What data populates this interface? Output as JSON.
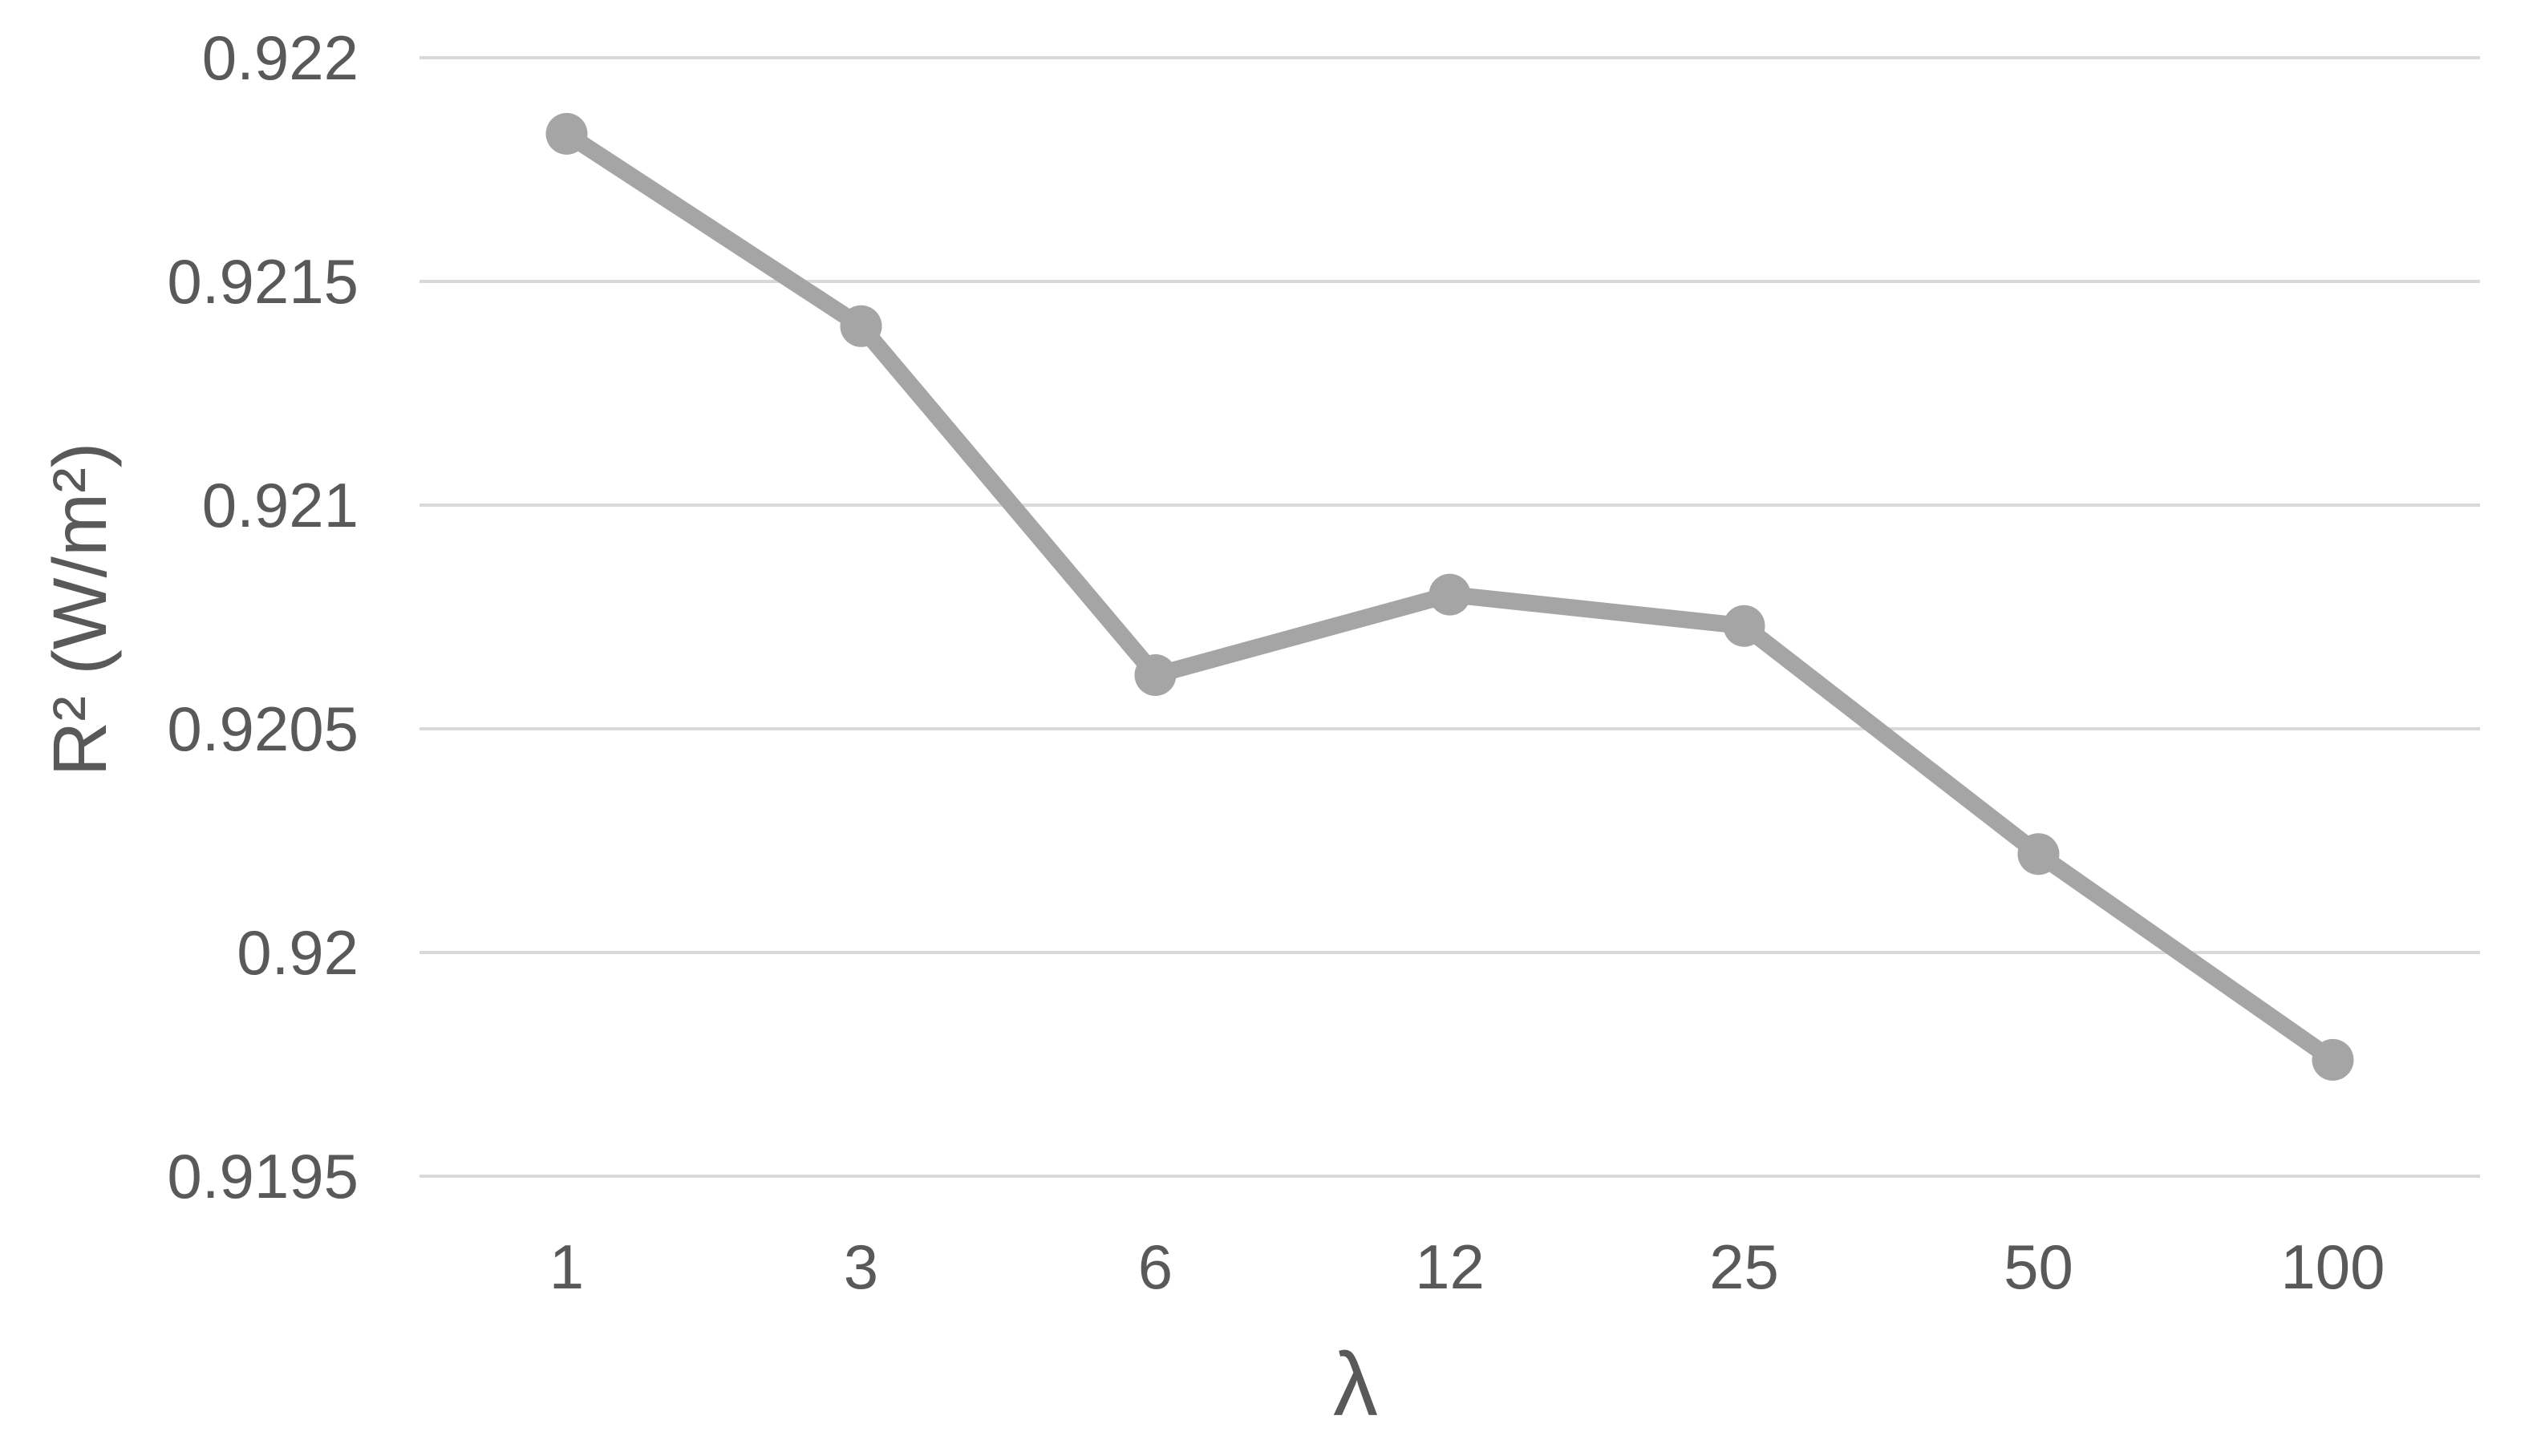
{
  "chart_data": {
    "type": "line",
    "title": "",
    "xlabel": "λ",
    "ylabel": "R² (W/m²)",
    "categories": [
      "1",
      "3",
      "6",
      "12",
      "25",
      "50",
      "100"
    ],
    "values": [
      0.92183,
      0.9214,
      0.92062,
      0.9208,
      0.92073,
      0.92022,
      0.91976
    ],
    "series_name": "R²",
    "y_ticks": [
      "0.922",
      "0.9215",
      "0.921",
      "0.9205",
      "0.92",
      "0.9195"
    ],
    "ylim": [
      0.9195,
      0.922
    ],
    "grid": "horizontal-only",
    "legend": "none",
    "marker": "circle",
    "colors": {
      "series": "#a5a5a5",
      "gridline": "#d9d9d9",
      "tick_text": "#595959",
      "background": "#ffffff"
    }
  }
}
